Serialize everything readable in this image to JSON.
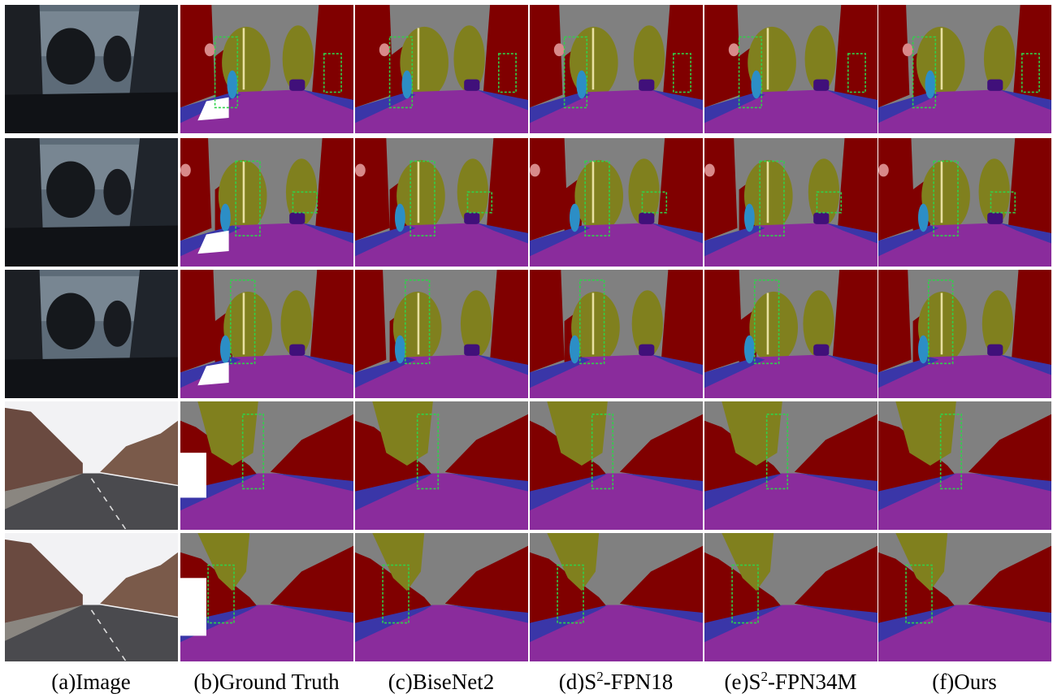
{
  "captions": [
    {
      "text": "(a)Image"
    },
    {
      "text": "(b)Ground Truth"
    },
    {
      "text": "(c)BiseNet2"
    },
    {
      "prefix": "(d)S",
      "sup": "2",
      "suffix": "-FPN18"
    },
    {
      "prefix": "(e)S",
      "sup": "2",
      "suffix": "-FPN34M"
    },
    {
      "text": "(f)Ours"
    }
  ]
}
